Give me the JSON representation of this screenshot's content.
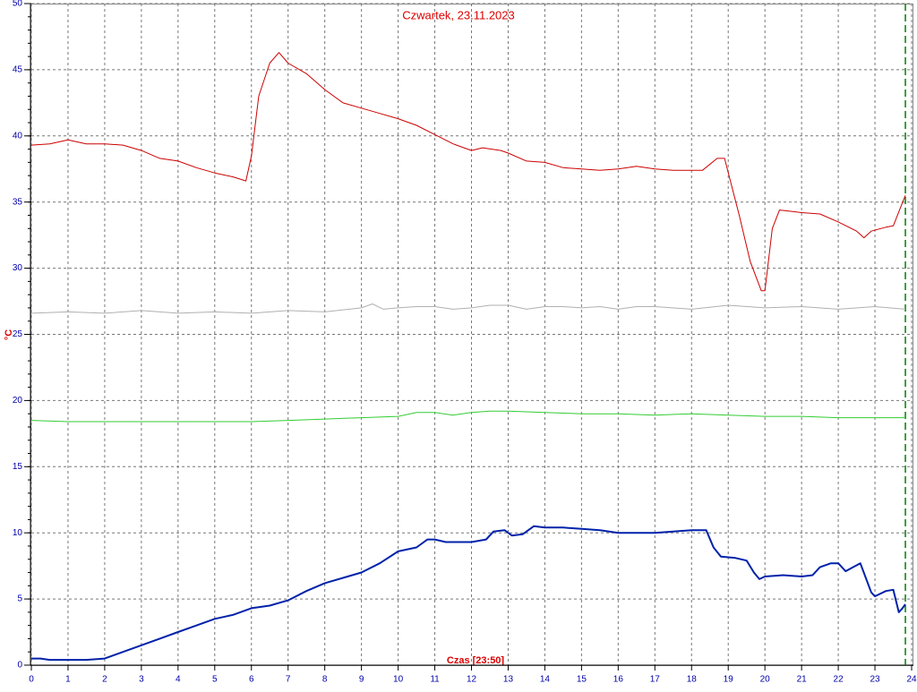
{
  "chart_data": {
    "type": "line",
    "title": "Czwartek, 23.11.2023",
    "ylabel": "°C",
    "xlabel": "Czas [23:50]",
    "xlim": [
      0,
      24
    ],
    "xticks": [
      0,
      1,
      2,
      3,
      4,
      5,
      6,
      7,
      8,
      9,
      10,
      11,
      12,
      13,
      14,
      15,
      16,
      17,
      18,
      19,
      20,
      21,
      22,
      23,
      24
    ],
    "ylim": [
      0,
      50
    ],
    "yticks": [
      0,
      5,
      10,
      15,
      20,
      25,
      30,
      35,
      40,
      45,
      50
    ],
    "y_minor_step": 1,
    "grid": true,
    "now_line": {
      "x": 23.83,
      "color": "#008000"
    },
    "series": [
      {
        "color": "#cc0000",
        "width": 1,
        "x": [
          0,
          0.5,
          1,
          1.5,
          2,
          2.5,
          3,
          3.5,
          4,
          4.5,
          5,
          5.5,
          5.85,
          6,
          6.2,
          6.5,
          6.75,
          7,
          7.5,
          8,
          8.5,
          9,
          9.5,
          10,
          10.5,
          11,
          11.5,
          12,
          12.3,
          12.8,
          13,
          13.5,
          14,
          14.5,
          15,
          15.5,
          16,
          16.5,
          17,
          17.5,
          18,
          18.3,
          18.7,
          18.9,
          19.3,
          19.6,
          19.9,
          20,
          20.2,
          20.4,
          20.7,
          21,
          21.5,
          22,
          22.5,
          22.7,
          22.9,
          23.3,
          23.5,
          23.7,
          23.83
        ],
        "values": [
          39.3,
          39.4,
          39.7,
          39.4,
          39.4,
          39.3,
          38.9,
          38.3,
          38.1,
          37.6,
          37.2,
          36.9,
          36.6,
          38.5,
          43,
          45.5,
          46.3,
          45.5,
          44.7,
          43.5,
          42.5,
          42.1,
          41.7,
          41.3,
          40.8,
          40.1,
          39.4,
          38.9,
          39.1,
          38.9,
          38.7,
          38.1,
          38.0,
          37.6,
          37.5,
          37.4,
          37.5,
          37.7,
          37.5,
          37.4,
          37.4,
          37.4,
          38.3,
          38.3,
          34,
          30.5,
          28.3,
          28.3,
          33,
          34.4,
          34.3,
          34.2,
          34.1,
          33.5,
          32.8,
          32.3,
          32.8,
          33.1,
          33.2,
          34.6,
          35.5
        ]
      },
      {
        "color": "#b0b0b0",
        "width": 1,
        "x": [
          0,
          1,
          2,
          3,
          4,
          5,
          6,
          7,
          8,
          9,
          9.3,
          9.6,
          10,
          10.5,
          11,
          11.5,
          12,
          12.5,
          13,
          13.5,
          14,
          14.5,
          15,
          15.5,
          16,
          16.5,
          17,
          18,
          19,
          20,
          21,
          22,
          23,
          23.83
        ],
        "values": [
          26.6,
          26.7,
          26.6,
          26.8,
          26.6,
          26.7,
          26.6,
          26.8,
          26.7,
          27,
          27.3,
          26.9,
          27,
          27.1,
          27.1,
          26.9,
          27,
          27.2,
          27.2,
          26.9,
          27.1,
          27.1,
          27,
          27.1,
          26.9,
          27.1,
          27.1,
          26.9,
          27.2,
          27,
          27.1,
          26.9,
          27.1,
          26.9
        ]
      },
      {
        "color": "#33cc33",
        "width": 1,
        "x": [
          0,
          1,
          2,
          3,
          4,
          5,
          6,
          7,
          8,
          9,
          10,
          10.5,
          11,
          11.5,
          12,
          12.5,
          13,
          14,
          15,
          16,
          17,
          18,
          19,
          20,
          21,
          22,
          23,
          23.83
        ],
        "values": [
          18.5,
          18.4,
          18.4,
          18.4,
          18.4,
          18.4,
          18.4,
          18.5,
          18.6,
          18.7,
          18.8,
          19.1,
          19.1,
          18.9,
          19.1,
          19.2,
          19.2,
          19.1,
          19.0,
          19.0,
          18.9,
          19.0,
          18.9,
          18.8,
          18.8,
          18.7,
          18.7,
          18.7
        ]
      },
      {
        "color": "#0022aa",
        "width": 2,
        "x": [
          0,
          0.25,
          0.5,
          1,
          1.5,
          2,
          2.5,
          3,
          3.5,
          4,
          4.5,
          5,
          5.5,
          6,
          6.5,
          7,
          7.5,
          8,
          8.5,
          9,
          9.5,
          10,
          10.5,
          10.8,
          11,
          11.3,
          12,
          12.4,
          12.6,
          12.9,
          13.1,
          13.4,
          13.7,
          14,
          14.5,
          15,
          15.5,
          16,
          16.5,
          17,
          17.5,
          18,
          18.4,
          18.6,
          18.8,
          19.2,
          19.5,
          19.7,
          19.85,
          20,
          20.5,
          21,
          21.3,
          21.5,
          21.8,
          22,
          22.2,
          22.4,
          22.6,
          22.9,
          23,
          23.3,
          23.5,
          23.65,
          23.75,
          23.83
        ],
        "values": [
          0.5,
          0.5,
          0.4,
          0.4,
          0.4,
          0.5,
          1.0,
          1.5,
          2.0,
          2.5,
          3.0,
          3.5,
          3.8,
          4.3,
          4.5,
          4.9,
          5.6,
          6.2,
          6.6,
          7.0,
          7.7,
          8.6,
          8.9,
          9.5,
          9.5,
          9.3,
          9.3,
          9.5,
          10.1,
          10.2,
          9.8,
          9.9,
          10.5,
          10.4,
          10.4,
          10.3,
          10.2,
          10.0,
          10.0,
          10.0,
          10.1,
          10.2,
          10.2,
          8.9,
          8.2,
          8.1,
          7.9,
          7.0,
          6.5,
          6.7,
          6.8,
          6.7,
          6.8,
          7.4,
          7.7,
          7.7,
          7.1,
          7.4,
          7.7,
          5.5,
          5.2,
          5.6,
          5.7,
          4.0,
          4.3,
          4.6
        ]
      }
    ]
  }
}
